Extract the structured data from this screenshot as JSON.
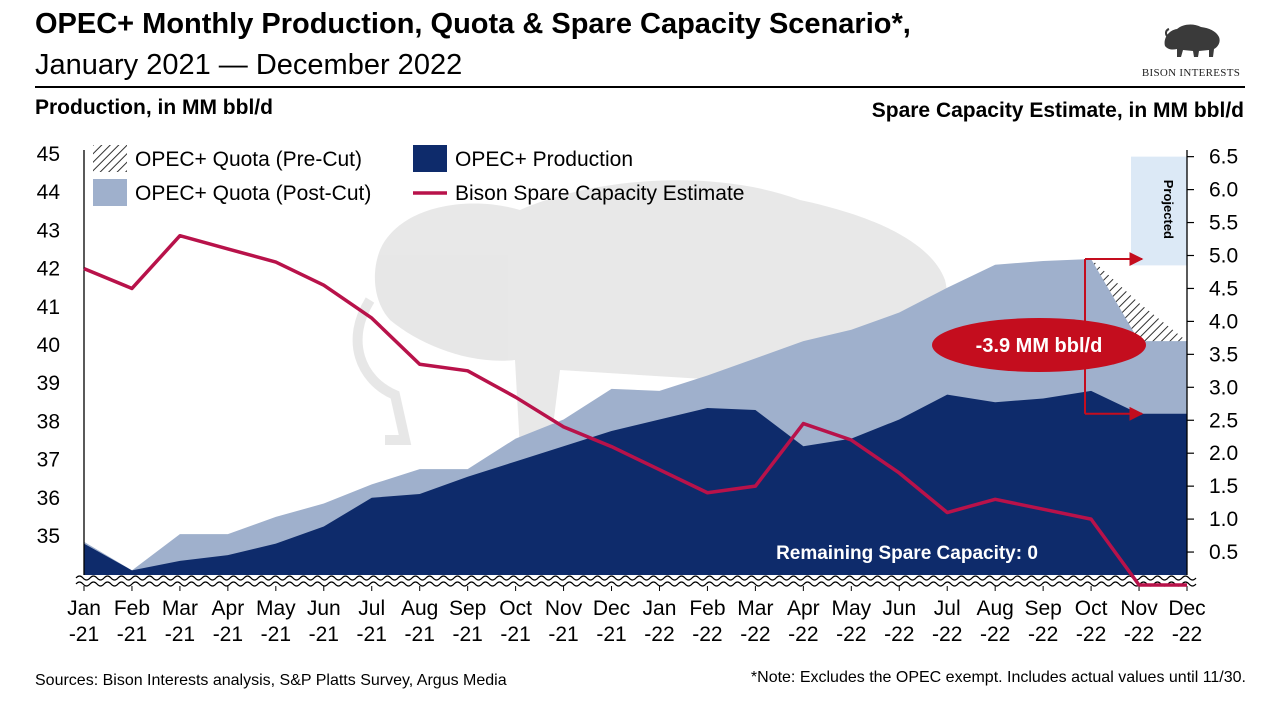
{
  "header": {
    "title_line1": "OPEC+ Monthly Production, Quota & Spare Capacity Scenario*,",
    "title_line2": "January 2021 — December 2022",
    "left_axis_label": "Production, in MM bbl/d",
    "right_axis_label": "Spare Capacity Estimate, in MM bbl/d",
    "logo_text": "BISON INTERESTS"
  },
  "footer": {
    "sources": "Sources: Bison Interests analysis, S&P Platts Survey, Argus Media",
    "note": "*Note: Excludes the OPEC exempt. Includes actual values until 11/30."
  },
  "chart_data": {
    "type": "area",
    "title": "OPEC+ Monthly Production, Quota & Spare Capacity Scenario*, January 2021 — December 2022",
    "categories": [
      "Jan-21",
      "Feb-21",
      "Mar-21",
      "Apr-21",
      "May-21",
      "Jun-21",
      "Jul-21",
      "Aug-21",
      "Sep-21",
      "Oct-21",
      "Nov-21",
      "Dec-21",
      "Jan-22",
      "Feb-22",
      "Mar-22",
      "Apr-22",
      "May-22",
      "Jun-22",
      "Jul-22",
      "Aug-22",
      "Sep-22",
      "Oct-22",
      "Nov-22",
      "Dec-22"
    ],
    "x_tick_labels": [
      [
        "Jan",
        "-21"
      ],
      [
        "Feb",
        "-21"
      ],
      [
        "Mar",
        "-21"
      ],
      [
        "Apr",
        "-21"
      ],
      [
        "May",
        "-21"
      ],
      [
        "Jun",
        "-21"
      ],
      [
        "Jul",
        "-21"
      ],
      [
        "Aug",
        "-21"
      ],
      [
        "Sep",
        "-21"
      ],
      [
        "Oct",
        "-21"
      ],
      [
        "Nov",
        "-21"
      ],
      [
        "Dec",
        "-21"
      ],
      [
        "Jan",
        "-22"
      ],
      [
        "Feb",
        "-22"
      ],
      [
        "Mar",
        "-22"
      ],
      [
        "Apr",
        "-22"
      ],
      [
        "May",
        "-22"
      ],
      [
        "Jun",
        "-22"
      ],
      [
        "Jul",
        "-22"
      ],
      [
        "Aug",
        "-22"
      ],
      [
        "Sep",
        "-22"
      ],
      [
        "Oct",
        "-22"
      ],
      [
        "Nov",
        "-22"
      ],
      [
        "Dec",
        "-22"
      ]
    ],
    "left_axis": {
      "label": "Production, in MM bbl/d",
      "ticks": [
        35,
        36,
        37,
        38,
        39,
        40,
        41,
        42,
        43,
        44,
        45
      ],
      "range": [
        34,
        45
      ]
    },
    "right_axis": {
      "label": "Spare Capacity Estimate, in MM bbl/d",
      "ticks": [
        "0.5",
        "1.0",
        "1.5",
        "2.0",
        "2.5",
        "3.0",
        "3.5",
        "4.0",
        "4.5",
        "5.0",
        "5.5",
        "6.0",
        "6.5"
      ],
      "range": [
        0,
        6.5
      ]
    },
    "series": [
      {
        "name": "OPEC+ Quota (Pre-Cut)",
        "axis": "left",
        "values": [
          null,
          null,
          null,
          null,
          null,
          null,
          null,
          null,
          null,
          null,
          null,
          null,
          null,
          null,
          null,
          null,
          null,
          null,
          null,
          null,
          null,
          42.25,
          41.1,
          40.1
        ]
      },
      {
        "name": "OPEC+ Quota (Post-Cut)",
        "axis": "left",
        "values": [
          34.85,
          34.1,
          35.05,
          35.05,
          35.5,
          35.85,
          36.35,
          36.75,
          36.75,
          37.55,
          38.05,
          38.85,
          38.8,
          39.2,
          39.65,
          40.1,
          40.4,
          40.85,
          41.5,
          42.1,
          42.2,
          42.25,
          40.1,
          40.1
        ]
      },
      {
        "name": "OPEC+ Production",
        "axis": "left",
        "values": [
          34.8,
          34.1,
          34.35,
          34.5,
          34.8,
          35.25,
          36.0,
          36.1,
          36.55,
          36.95,
          37.35,
          37.75,
          38.05,
          38.35,
          38.3,
          37.35,
          37.55,
          38.05,
          38.7,
          38.5,
          38.6,
          38.8,
          38.2,
          38.2
        ]
      },
      {
        "name": "Bison Spare Capacity Estimate",
        "axis": "right",
        "values": [
          4.8,
          4.5,
          5.3,
          5.1,
          4.9,
          4.55,
          4.05,
          3.35,
          3.25,
          2.85,
          2.4,
          2.1,
          1.75,
          1.4,
          1.5,
          2.45,
          2.2,
          1.7,
          1.1,
          1.3,
          1.15,
          1.0,
          0.0,
          0.0
        ]
      }
    ],
    "legend": [
      "OPEC+ Quota (Pre-Cut)",
      "OPEC+ Production",
      "OPEC+ Quota (Post-Cut)",
      "Bison Spare Capacity Estimate"
    ],
    "annotations": {
      "cut_label": "-3.9 MM bbl/d",
      "projected_label": "Projected",
      "remaining_label": "Remaining Spare Capacity: 0"
    },
    "colors": {
      "production": "#0e2b6b",
      "quota_post": "#9fb0cc",
      "spare_line": "#b8124a",
      "annotation_red": "#c40d1e",
      "projected_bg": "#dce9f6"
    }
  }
}
